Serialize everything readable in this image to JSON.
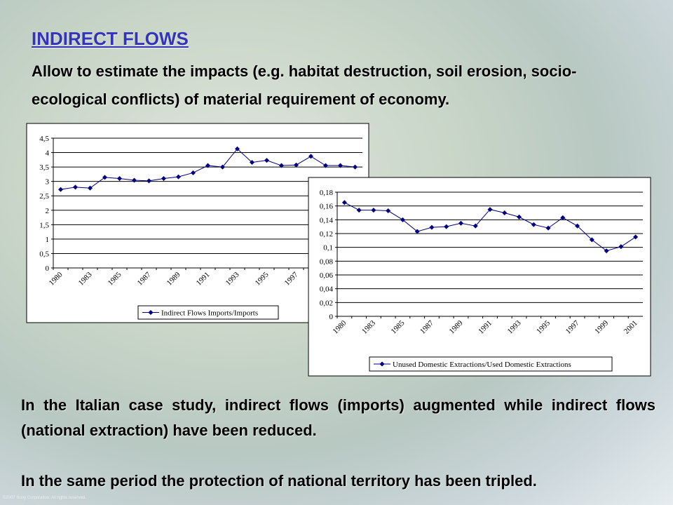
{
  "header": {
    "title": "INDIRECT FLOWS",
    "subtitle": "Allow to estimate the impacts (e.g. habitat destruction, soil erosion, socio-ecological conflicts) of material requirement of economy."
  },
  "chart_data": [
    {
      "type": "line",
      "categories": [
        "1980",
        null,
        "1983",
        null,
        "1985",
        null,
        "1987",
        null,
        "1989",
        null,
        "1991",
        null,
        "1993",
        null,
        "1995",
        null,
        "1997",
        null,
        null,
        null,
        null
      ],
      "series": [
        {
          "name": "Indirect Flows Imports/Imports",
          "color": "#000080",
          "values": [
            2.72,
            2.8,
            2.77,
            3.14,
            3.1,
            3.04,
            3.02,
            3.1,
            3.16,
            3.3,
            3.55,
            3.5,
            4.13,
            3.66,
            3.73,
            3.55,
            3.57,
            3.87,
            3.55,
            3.55,
            3.5
          ]
        }
      ],
      "ylim": [
        0,
        4.5
      ],
      "yticks": [
        0,
        {
          "value": 0.5,
          "label": "0,5"
        },
        1,
        {
          "value": 1.5,
          "label": "1,5"
        },
        2,
        {
          "value": 2.5,
          "label": "2,5"
        },
        3,
        {
          "value": 3.5,
          "label": "3,5"
        },
        4,
        {
          "value": 4.5,
          "label": "4,5"
        }
      ],
      "grid": true,
      "legend": "bottom"
    },
    {
      "type": "line",
      "categories": [
        "1980",
        null,
        "1983",
        null,
        "1985",
        null,
        "1987",
        null,
        "1989",
        null,
        "1991",
        null,
        "1993",
        null,
        "1995",
        null,
        "1997",
        null,
        "1999",
        null,
        "2001"
      ],
      "series": [
        {
          "name": "Unused Domestic Extractions/Used Domestic Extractions",
          "color": "#000080",
          "values": [
            0.165,
            0.154,
            0.154,
            0.153,
            0.14,
            0.123,
            0.129,
            0.13,
            0.135,
            0.131,
            0.155,
            0.15,
            0.144,
            0.133,
            0.128,
            0.143,
            0.131,
            0.111,
            0.095,
            0.101,
            0.115
          ]
        }
      ],
      "ylim": [
        0,
        0.18
      ],
      "yticks": [
        0,
        {
          "value": 0.02,
          "label": "0,02"
        },
        {
          "value": 0.04,
          "label": "0,04"
        },
        {
          "value": 0.06,
          "label": "0,06"
        },
        {
          "value": 0.08,
          "label": "0,08"
        },
        {
          "value": 0.1,
          "label": "0,1"
        },
        {
          "value": 0.12,
          "label": "0,12"
        },
        {
          "value": 0.14,
          "label": "0,14"
        },
        {
          "value": 0.16,
          "label": "0,16"
        },
        {
          "value": 0.18,
          "label": "0,18"
        }
      ],
      "grid": true,
      "legend": "bottom"
    }
  ],
  "paragraphs": [
    "In the Italian case study, indirect flows (imports) augmented while indirect flows (national extraction) have been reduced.",
    "In the same period the protection of national territory has been tripled."
  ],
  "footer": "©2007 Sony Corporation. All rights reserved."
}
